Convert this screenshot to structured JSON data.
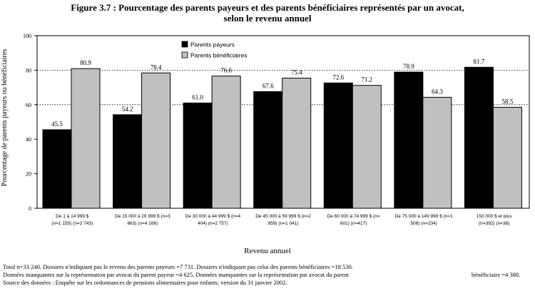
{
  "chart_data": {
    "type": "bar",
    "title": "Figure 3.7 :  Pourcentage des parents payeurs et des parents bénéficiaires représentés par un avocat, selon le revenu annuel",
    "title_line1": "Figure 3.7 :  Pourcentage des parents payeurs et des parents bénéficiaires représentés par un avocat,",
    "title_line2": "selon le revenu annuel",
    "ylabel": "Pourcentage de parents payeurs ou bénéficiaires",
    "xlabel": "Revenu annuel",
    "ylim": [
      0,
      100
    ],
    "yticks": [
      0,
      20,
      40,
      60,
      80,
      100
    ],
    "ytick_labels": [
      "0",
      "20",
      "40",
      "60",
      "80",
      "100"
    ],
    "grid": "horizontal dotted at 60, 80",
    "legend_position": "top-left inside",
    "categories": [
      [
        "De 1 à 14 999 $",
        "(n=1 155) (n=2 743)"
      ],
      [
        "De 15 000 à 29 999 $   (n=3",
        "663) (n=4 166)"
      ],
      [
        "De 30 000 à 44 999 $   (n=4",
        "404) (n=2 757)"
      ],
      [
        "De 45 000 à 59 999 $   (n=2",
        "959) (n=1 041)"
      ],
      [
        "De 60 000 à 74 999 $   (n=",
        "601) (n=417)"
      ],
      [
        "De 75 000 à 149 999 $ (n=1",
        "508) (n=234)"
      ],
      [
        "150 000 $ et plus",
        "(n=392) (n=38)"
      ]
    ],
    "series": [
      {
        "name": "Parents payeurs",
        "color": "#000000",
        "values": [
          45.5,
          54.2,
          61.0,
          67.6,
          72.6,
          78.9,
          81.7
        ],
        "labels": [
          "45.5",
          "54.2",
          "61.0",
          "67.6",
          "72.6",
          "78.9",
          "81.7"
        ]
      },
      {
        "name": "Parents bénéficiaires",
        "color": "#c0c0c0",
        "values": [
          80.9,
          78.4,
          76.6,
          75.4,
          71.2,
          64.3,
          58.5
        ],
        "labels": [
          "80.9",
          "78.4",
          "76.6",
          "75.4",
          "71.2",
          "64.3",
          "58.5"
        ]
      }
    ]
  },
  "notes": {
    "line1": "Total n=33 240.  Dossiers n'indiquant pas le revenu des parents payeurs =7 731.  Dossiers n'indiquant pas celui des parents bénéficiaires =18 530.",
    "line2a": "Données manquantes sur la représentation par avocat du parent payeur =4 625.  Données manquantes sur la représentation par avocat du parent",
    "line2b": "bénéficiaire =4 388.",
    "line3": "Source des données : Enquête sur les ordonnances de pensions alimentaires pour enfants; version du 31 janvier 2002."
  }
}
